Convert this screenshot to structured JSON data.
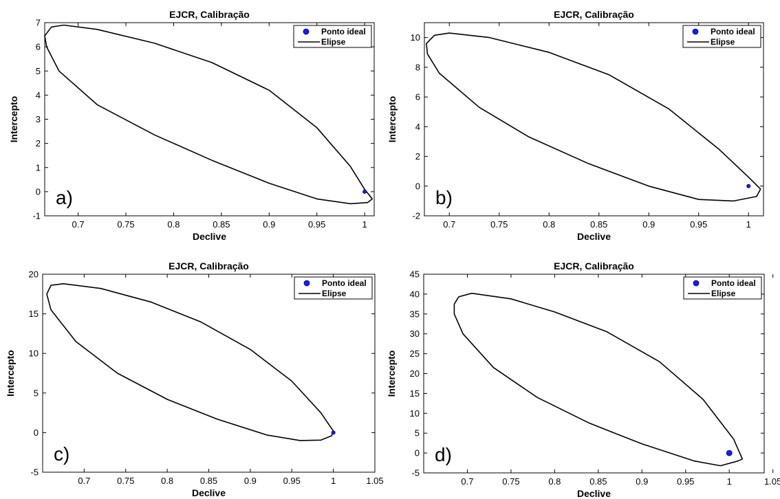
{
  "chart_data": [
    {
      "type": "scatter",
      "panel_label": "a)",
      "title": "EJCR, Calibração",
      "xlabel": "Declive",
      "ylabel": "Intercepto",
      "xlim": [
        0.665,
        1.01
      ],
      "ylim": [
        -1,
        7
      ],
      "xticks": [
        0.7,
        0.75,
        0.8,
        0.85,
        0.9,
        0.95,
        1
      ],
      "yticks": [
        -1,
        0,
        1,
        2,
        3,
        4,
        5,
        6,
        7
      ],
      "legend_position": "top-right",
      "legend": [
        "Ponto ideal",
        "Elipse"
      ],
      "ideal_point": {
        "x": 1,
        "y": 0
      },
      "ellipse": [
        [
          0.665,
          6.45
        ],
        [
          0.672,
          6.82
        ],
        [
          0.685,
          6.9
        ],
        [
          0.72,
          6.72
        ],
        [
          0.78,
          6.15
        ],
        [
          0.84,
          5.35
        ],
        [
          0.9,
          4.2
        ],
        [
          0.95,
          2.65
        ],
        [
          0.985,
          1.05
        ],
        [
          1.0,
          0.1
        ],
        [
          1.008,
          -0.3
        ],
        [
          1.003,
          -0.45
        ],
        [
          0.985,
          -0.5
        ],
        [
          0.95,
          -0.3
        ],
        [
          0.9,
          0.35
        ],
        [
          0.84,
          1.3
        ],
        [
          0.78,
          2.35
        ],
        [
          0.72,
          3.6
        ],
        [
          0.68,
          5.0
        ],
        [
          0.667,
          6.0
        ],
        [
          0.665,
          6.45
        ]
      ]
    },
    {
      "type": "scatter",
      "panel_label": "b)",
      "title": "EJCR, Calibração",
      "xlabel": "Declive",
      "ylabel": "Intercepto",
      "xlim": [
        0.675,
        1.015
      ],
      "ylim": [
        -2,
        11
      ],
      "xticks": [
        0.7,
        0.75,
        0.8,
        0.85,
        0.9,
        0.95,
        1
      ],
      "yticks": [
        -2,
        0,
        2,
        4,
        6,
        8,
        10
      ],
      "legend_position": "top-right",
      "legend": [
        "Ponto ideal",
        "Elipse"
      ],
      "ideal_point": {
        "x": 1,
        "y": 0
      },
      "ellipse": [
        [
          0.677,
          9.6
        ],
        [
          0.685,
          10.15
        ],
        [
          0.7,
          10.3
        ],
        [
          0.74,
          10.0
        ],
        [
          0.8,
          9.0
        ],
        [
          0.86,
          7.5
        ],
        [
          0.92,
          5.2
        ],
        [
          0.97,
          2.5
        ],
        [
          1.0,
          0.6
        ],
        [
          1.012,
          -0.2
        ],
        [
          1.008,
          -0.7
        ],
        [
          0.985,
          -1.0
        ],
        [
          0.95,
          -0.9
        ],
        [
          0.9,
          0.0
        ],
        [
          0.84,
          1.5
        ],
        [
          0.78,
          3.3
        ],
        [
          0.73,
          5.3
        ],
        [
          0.69,
          7.6
        ],
        [
          0.678,
          8.9
        ],
        [
          0.677,
          9.6
        ]
      ]
    },
    {
      "type": "scatter",
      "panel_label": "c)",
      "title": "EJCR, Calibração",
      "xlabel": "Declive",
      "ylabel": "Intercepto",
      "xlim": [
        0.65,
        1.05
      ],
      "ylim": [
        -5,
        20
      ],
      "xticks": [
        0.7,
        0.75,
        0.8,
        0.85,
        0.9,
        0.95,
        1,
        1.05
      ],
      "yticks": [
        -5,
        0,
        5,
        10,
        15,
        20
      ],
      "legend_position": "top-right",
      "legend": [
        "Ponto ideal",
        "Elipse"
      ],
      "ideal_point": {
        "x": 1,
        "y": 0
      },
      "ellipse": [
        [
          0.655,
          17.5
        ],
        [
          0.66,
          18.6
        ],
        [
          0.675,
          18.8
        ],
        [
          0.72,
          18.2
        ],
        [
          0.78,
          16.5
        ],
        [
          0.84,
          14.0
        ],
        [
          0.9,
          10.5
        ],
        [
          0.95,
          6.5
        ],
        [
          0.985,
          2.5
        ],
        [
          1.0,
          0.2
        ],
        [
          0.998,
          -0.4
        ],
        [
          0.985,
          -0.95
        ],
        [
          0.96,
          -1.0
        ],
        [
          0.92,
          -0.3
        ],
        [
          0.86,
          1.7
        ],
        [
          0.8,
          4.2
        ],
        [
          0.74,
          7.5
        ],
        [
          0.69,
          11.5
        ],
        [
          0.66,
          15.5
        ],
        [
          0.655,
          17.5
        ]
      ]
    },
    {
      "type": "scatter",
      "panel_label": "d)",
      "title": "EJCR, Calibração",
      "xlabel": "Declive",
      "ylabel": "Intercepto",
      "xlim": [
        0.65,
        1.04
      ],
      "ylim": [
        -5,
        45
      ],
      "xticks": [
        0.7,
        0.75,
        0.8,
        0.85,
        0.9,
        0.95,
        1,
        1.05
      ],
      "yticks": [
        -5,
        0,
        5,
        10,
        15,
        20,
        25,
        30,
        35,
        40,
        45
      ],
      "legend_position": "top-right",
      "legend": [
        "Ponto ideal",
        "Elipse"
      ],
      "ideal_point": {
        "x": 1,
        "y": 0
      },
      "ellipse": [
        [
          0.685,
          37.5
        ],
        [
          0.69,
          39.3
        ],
        [
          0.705,
          40.2
        ],
        [
          0.75,
          38.8
        ],
        [
          0.8,
          35.5
        ],
        [
          0.86,
          30.5
        ],
        [
          0.92,
          23.0
        ],
        [
          0.97,
          13.5
        ],
        [
          1.005,
          3.5
        ],
        [
          1.015,
          -1.5
        ],
        [
          1.01,
          -2.0
        ],
        [
          0.99,
          -3.2
        ],
        [
          0.96,
          -2.0
        ],
        [
          0.9,
          2.3
        ],
        [
          0.84,
          7.5
        ],
        [
          0.78,
          14.0
        ],
        [
          0.73,
          21.5
        ],
        [
          0.695,
          30.0
        ],
        [
          0.685,
          35.0
        ],
        [
          0.685,
          37.5
        ]
      ]
    }
  ]
}
